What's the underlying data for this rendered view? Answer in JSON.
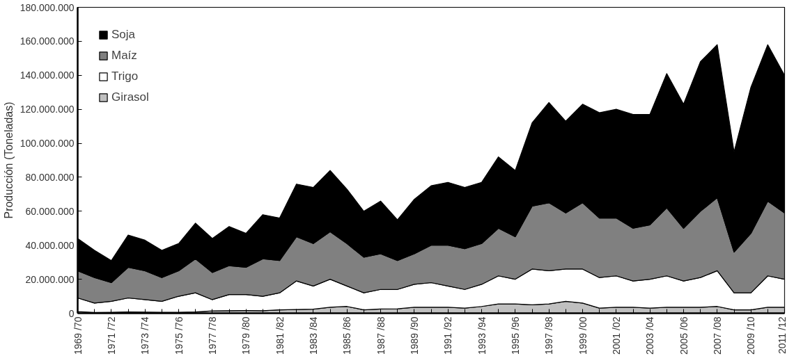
{
  "chart_data": {
    "type": "area",
    "stacked": true,
    "ylabel": "Producción (Toneladas)",
    "categories": [
      "1969 /70",
      null,
      "1971 /72",
      null,
      "1973 /74",
      null,
      "1975 /76",
      null,
      "1977 /78",
      null,
      "1979 /80",
      null,
      "1981 /82",
      null,
      "1983 /84",
      null,
      "1985 /86",
      null,
      "1987 /88",
      null,
      "1989 /90",
      null,
      "1991 /92",
      null,
      "1993 /94",
      null,
      "1995 /96",
      null,
      "1997 /98",
      null,
      "1999 /00",
      null,
      "2001 /02",
      null,
      "2003 /04",
      null,
      "2005 /06",
      null,
      "2007 /08",
      null,
      "2009 /10",
      null,
      "2011 /12"
    ],
    "series": [
      {
        "name": "Girasol",
        "color": "#c0c0c0",
        "values": [
          1000000,
          500000,
          600000,
          800000,
          700000,
          600000,
          600000,
          800000,
          1400000,
          1500000,
          1600000,
          1500000,
          2000000,
          2200000,
          2400000,
          3500000,
          4000000,
          2000000,
          2500000,
          2600000,
          3500000,
          3500000,
          3500000,
          3000000,
          4000000,
          5500000,
          5500000,
          5000000,
          5500000,
          7000000,
          6000000,
          3000000,
          3500000,
          3500000,
          3000000,
          3500000,
          3500000,
          3500000,
          4000000,
          2000000,
          2000000,
          3500000,
          3500000
        ]
      },
      {
        "name": "Trigo",
        "color": "#ffffff",
        "values": [
          8000000,
          5500000,
          6400000,
          8200000,
          7300000,
          6400000,
          9400000,
          11200000,
          6600000,
          9500000,
          9400000,
          8500000,
          10000000,
          16800000,
          13600000,
          16500000,
          12000000,
          10000000,
          11500000,
          11400000,
          13500000,
          14500000,
          12500000,
          11000000,
          13000000,
          16500000,
          14500000,
          21000000,
          19500000,
          19000000,
          20000000,
          18000000,
          18500000,
          15500000,
          17000000,
          18500000,
          15500000,
          17500000,
          21000000,
          10000000,
          10000000,
          18500000,
          16500000
        ]
      },
      {
        "name": "Maíz",
        "color": "#808080",
        "values": [
          16000000,
          15000000,
          11000000,
          18000000,
          17000000,
          14000000,
          15000000,
          20000000,
          16000000,
          17000000,
          16000000,
          22000000,
          19000000,
          26000000,
          25000000,
          28000000,
          25000000,
          21000000,
          21000000,
          17000000,
          18000000,
          22000000,
          24000000,
          24000000,
          24000000,
          28000000,
          25000000,
          37000000,
          40000000,
          33000000,
          39000000,
          35000000,
          34000000,
          31000000,
          32000000,
          40000000,
          31000000,
          39000000,
          43000000,
          24000000,
          35000000,
          44000000,
          39000000
        ]
      },
      {
        "name": "Soja",
        "color": "#000000",
        "values": [
          19000000,
          16000000,
          13000000,
          19000000,
          18000000,
          16000000,
          16000000,
          21000000,
          20000000,
          23000000,
          20000000,
          26000000,
          25000000,
          31000000,
          33000000,
          36000000,
          32000000,
          27000000,
          31000000,
          24000000,
          32000000,
          35000000,
          37000000,
          36000000,
          36000000,
          42000000,
          39000000,
          49000000,
          59000000,
          54000000,
          58000000,
          62000000,
          64000000,
          67000000,
          65000000,
          79000000,
          73000000,
          88000000,
          90000000,
          59000000,
          86000000,
          92000000,
          81000000
        ]
      }
    ],
    "ylim": [
      0,
      180000000
    ],
    "yticks": [
      {
        "value": 0,
        "label": "0"
      },
      {
        "value": 20000000,
        "label": "20.000.000"
      },
      {
        "value": 40000000,
        "label": "40.000.000"
      },
      {
        "value": 60000000,
        "label": "60.000.000"
      },
      {
        "value": 80000000,
        "label": "80.000.000"
      },
      {
        "value": 100000000,
        "label": "100.000.000"
      },
      {
        "value": 120000000,
        "label": "120.000.000"
      },
      {
        "value": 140000000,
        "label": "140.000.000"
      },
      {
        "value": 160000000,
        "label": "160.000.000"
      },
      {
        "value": 180000000,
        "label": "180.000.000"
      }
    ],
    "legend": "top left"
  }
}
